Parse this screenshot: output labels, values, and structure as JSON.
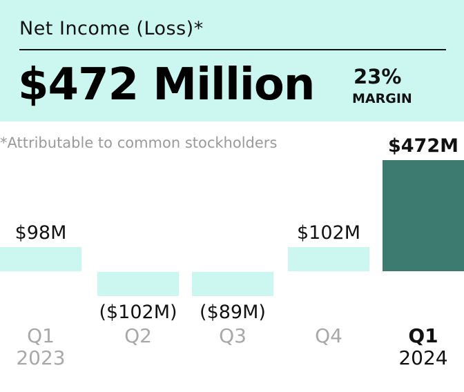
{
  "header": {
    "title": "Net Income (Loss)*",
    "headline_value": "$472 Million",
    "margin_pct": "23%",
    "margin_label": "MARGIN"
  },
  "footnote": "*Attributable to common stockholders",
  "colors": {
    "header_bg": "#ccf7f1",
    "bar_light": "#ccf7f1",
    "bar_highlight": "#3d7a70",
    "label_dark": "#111111",
    "axis_muted": "#a8a8a8"
  },
  "chart_data": {
    "type": "bar",
    "unit": "$M",
    "categories": [
      {
        "quarter": "Q1",
        "year": "2023"
      },
      {
        "quarter": "Q2",
        "year": ""
      },
      {
        "quarter": "Q3",
        "year": ""
      },
      {
        "quarter": "Q4",
        "year": ""
      },
      {
        "quarter": "Q1",
        "year": "2024"
      }
    ],
    "values": [
      98,
      -102,
      -89,
      102,
      472
    ],
    "value_labels": [
      "$98M",
      "($102M)",
      "($89M)",
      "$102M",
      "$472M"
    ],
    "highlight_index": 4,
    "title": "",
    "xlabel": "",
    "ylabel": "",
    "grid": false,
    "legend": "none"
  }
}
